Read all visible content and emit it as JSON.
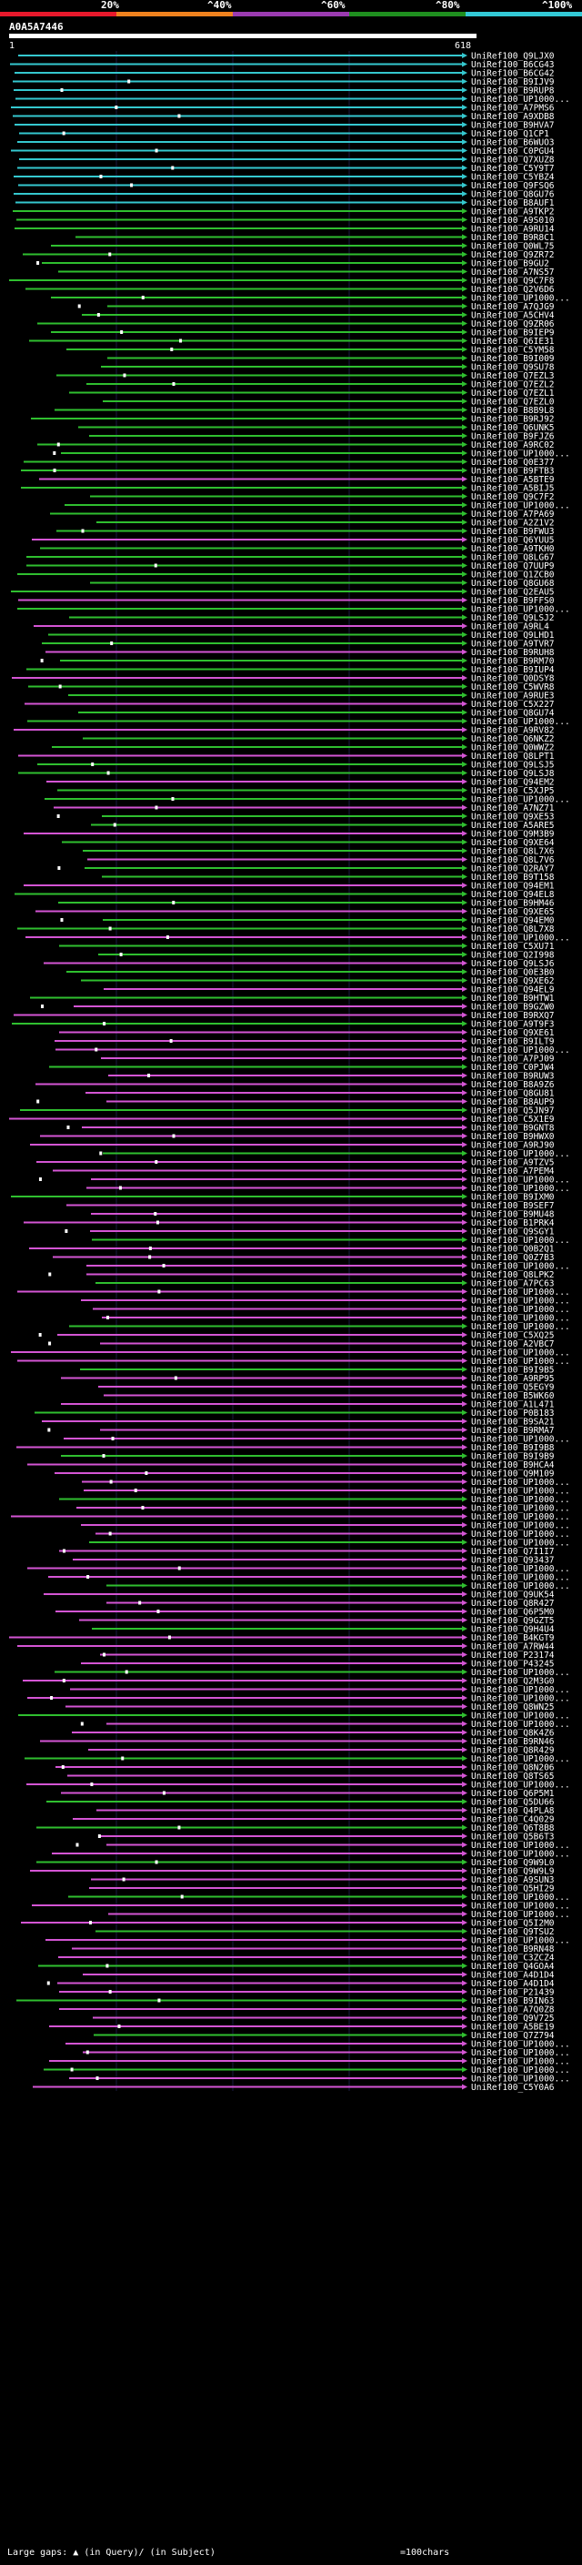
{
  "header": {
    "percent_labels": [
      "20%",
      "^40%",
      "^60%",
      "^80%",
      "^100%"
    ],
    "band_colors": [
      "#e8192c",
      "#f0821e",
      "#9b3bb0",
      "#1f8f1f",
      "#33c9d6"
    ],
    "query_id": "A0A5A7446",
    "start_pos": "1",
    "end_pos": "618"
  },
  "colors": {
    "cyan": "#35c8cf",
    "green": "#2fbf2f",
    "magenta": "#d455d4",
    "dark_green": "#2a6a2a"
  },
  "hits": [
    "UniRef100_Q9LJX0",
    "UniRef100_B6CG43",
    "UniRef100_B6CG42",
    "UniRef100_B9IJV9",
    "UniRef100_B9RUP8",
    "UniRef100_UP1000...",
    "UniRef100_A7PMS6",
    "UniRef100_A9XDB8",
    "UniRef100_B9HVA7",
    "UniRef100_Q1CP1",
    "UniRef100_B6WUO3",
    "UniRef100_C0PGU4",
    "UniRef100_Q7XUZ8",
    "UniRef100_C5Y9T7",
    "UniRef100_C5YBZ4",
    "UniRef100_Q9FSQ6",
    "UniRef100_Q8GU76",
    "UniRef100_B8AUF1",
    "UniRef100_A9TKP2",
    "UniRef100_A9S010",
    "UniRef100_A9RU14",
    "UniRef100_B9R8C1",
    "UniRef100_Q0WL75",
    "UniRef100_Q9ZR72",
    "UniRef100_B9GU2",
    "UniRef100_A7NS57",
    "UniRef100_Q9C7F8",
    "UniRef100_Q2V6D6",
    "UniRef100_UP1000...",
    "UniRef100_A7QJG9",
    "UniRef100_A5CHV4",
    "UniRef100_Q9ZR06",
    "UniRef100_B9IEP9",
    "UniRef100_Q6IE31",
    "UniRef100_C5YM58",
    "UniRef100_B9I009",
    "UniRef100_Q9SU78",
    "UniRef100_Q7EZL3",
    "UniRef100_Q7EZL2",
    "UniRef100_Q7EZL1",
    "UniRef100_Q7EZL0",
    "UniRef100_B8B9L8",
    "UniRef100_B9RJ92",
    "UniRef100_Q6UNK5",
    "UniRef100_B9FJZ6",
    "UniRef100_A9RC02",
    "UniRef100_UP1000...",
    "UniRef100_Q0E377",
    "UniRef100_B9FTB3",
    "UniRef100_A5BTE9",
    "UniRef100_A5BIJ5",
    "UniRef100_Q9C7F2",
    "UniRef100_UP1000...",
    "UniRef100_A7PA69",
    "UniRef100_A2Z1V2",
    "UniRef100_B9FWU3",
    "UniRef100_Q6YUU5",
    "UniRef100_A9TKH0",
    "UniRef100_Q8LG67",
    "UniRef100_Q7UUP9",
    "UniRef100_Q1ZCB0",
    "UniRef100_Q8GU68",
    "UniRef100_Q2EAU5",
    "UniRef100_B9FFS0",
    "UniRef100_UP1000...",
    "UniRef100_Q9LSJ2",
    "UniRef100_A9RL4",
    "UniRef100_Q9LHD1",
    "UniRef100_A9TVR7",
    "UniRef100_B9RUH8",
    "UniRef100_B9RM70",
    "UniRef100_B9IUP4",
    "UniRef100_Q0DSY8",
    "UniRef100_C5WVR8",
    "UniRef100_A9RUE3",
    "UniRef100_C5X227",
    "UniRef100_Q8GU74",
    "UniRef100_UP1000...",
    "UniRef100_A9RV82",
    "UniRef100_Q6NKZ2",
    "UniRef100_Q0WWZ2",
    "UniRef100_Q8LPT1",
    "UniRef100_Q9LSJ5",
    "UniRef100_Q9LSJ8",
    "UniRef100_Q94EM2",
    "UniRef100_C5XJP5",
    "UniRef100_UP1000...",
    "UniRef100_A7NZ71",
    "UniRef100_Q9XE53",
    "UniRef100_A5ARE5",
    "UniRef100_Q9M3B9",
    "UniRef100_Q9XE64",
    "UniRef100_Q8L7X6",
    "UniRef100_Q8L7V6",
    "UniRef100_Q2RAY7",
    "UniRef100_B9T158",
    "UniRef100_Q94EM1",
    "UniRef100_Q94EL8",
    "UniRef100_B9HM46",
    "UniRef100_Q9XE65",
    "UniRef100_Q94EM0",
    "UniRef100_Q8L7X8",
    "UniRef100_UP1000...",
    "UniRef100_C5XU71",
    "UniRef100_Q2I998",
    "UniRef100_Q9LSJ6",
    "UniRef100_Q0E3B0",
    "UniRef100_Q9XE62",
    "UniRef100_Q94EL9",
    "UniRef100_B9HTW1",
    "UniRef100_B9GZW0",
    "UniRef100_B9RXQ7",
    "UniRef100_A9T9F3",
    "UniRef100_Q9XE61",
    "UniRef100_B9ILT9",
    "UniRef100_UP1000...",
    "UniRef100_A7PJ09",
    "UniRef100_C0PJW4",
    "UniRef100_B9RUW3",
    "UniRef100_B8A9Z6",
    "UniRef100_Q8GU81",
    "UniRef100_B8AUP9",
    "UniRef100_Q5JN97",
    "UniRef100_C5X1E9",
    "UniRef100_B9GNT8",
    "UniRef100_B9HWX0",
    "UniRef100_A9RJ90",
    "UniRef100_UP1000...",
    "UniRef100_A9TZV5",
    "UniRef100_A7PEM4",
    "UniRef100_UP1000...",
    "UniRef100_UP1000...",
    "UniRef100_B9IXM0",
    "UniRef100_B9SEF7",
    "UniRef100_B9MU48",
    "UniRef100_B1PRK4",
    "UniRef100_Q9SGY1",
    "UniRef100_UP1000...",
    "UniRef100_Q0B2Q1",
    "UniRef100_Q0Z7B3",
    "UniRef100_UP1000...",
    "UniRef100_Q8LPK2",
    "UniRef100_A7PC63",
    "UniRef100_UP1000...",
    "UniRef100_UP1000...",
    "UniRef100_UP1000...",
    "UniRef100_UP1000...",
    "UniRef100_UP1000...",
    "UniRef100_C5XQ25",
    "UniRef100_A2VBC7",
    "UniRef100_UP1000...",
    "UniRef100_UP1000...",
    "UniRef100_B9I9B5",
    "UniRef100_A9RP95",
    "UniRef100_Q5EGY9",
    "UniRef100_B5WK60",
    "UniRef100_A1L471",
    "UniRef100_P0B183",
    "UniRef100_B9SA21",
    "UniRef100_B9RMA7",
    "UniRef100_UP1000...",
    "UniRef100_B9I9B8",
    "UniRef100_B9I9B9",
    "UniRef100_B9HCA4",
    "UniRef100_Q9M109",
    "UniRef100_UP1000...",
    "UniRef100_UP1000...",
    "UniRef100_UP1000...",
    "UniRef100_UP1000...",
    "UniRef100_UP1000...",
    "UniRef100_UP1000...",
    "UniRef100_UP1000...",
    "UniRef100_UP1000...",
    "UniRef100_Q7I1I7",
    "UniRef100_Q93437",
    "UniRef100_UP1000...",
    "UniRef100_UP1000...",
    "UniRef100_UP1000...",
    "UniRef100_Q9UK54",
    "UniRef100_Q8R427",
    "UniRef100_Q6P5M0",
    "UniRef100_Q9GZT5",
    "UniRef100_Q9H4U4",
    "UniRef100_B4KGT9",
    "UniRef100_A7RW44",
    "UniRef100_P23174",
    "UniRef100_P43245",
    "UniRef100_UP1000...",
    "UniRef100_Q2M3G0",
    "UniRef100_UP1000...",
    "UniRef100_UP1000...",
    "UniRef100_Q8WN25",
    "UniRef100_UP1000...",
    "UniRef100_UP1000...",
    "UniRef100_Q8K4Z6",
    "UniRef100_B9RN46",
    "UniRef100_Q8R429",
    "UniRef100_UP1000...",
    "UniRef100_Q8N206",
    "UniRef100_Q8TS65",
    "UniRef100_UP1000...",
    "UniRef100_Q6P5M1",
    "UniRef100_Q5DU66",
    "UniRef100_Q4PLA8",
    "UniRef100_C4Q029",
    "UniRef100_Q6T8B8",
    "UniRef100_Q5B6T3",
    "UniRef100_UP1000...",
    "UniRef100_UP1000...",
    "UniRef100_Q9W9L0",
    "UniRef100_Q9W9L9",
    "UniRef100_A9SUN3",
    "UniRef100_Q5HI29",
    "UniRef100_UP1000...",
    "UniRef100_UP1000...",
    "UniRef100_UP1000...",
    "UniRef100_Q5I2M0",
    "UniRef100_Q9TSU2",
    "UniRef100_UP1000...",
    "UniRef100_B9RN48",
    "UniRef100_C3ZCZ4",
    "UniRef100_Q4GOA4",
    "UniRef100_A4D1D4",
    "UniRef100_A4D1D4",
    "UniRef100_P21439",
    "UniRef100_B9IN63",
    "UniRef100_A7Q0Z8",
    "UniRef100_Q9V725",
    "UniRef100_A5BE19",
    "UniRef100_Q7Z794",
    "UniRef100_UP1000...",
    "UniRef100_UP1000...",
    "UniRef100_UP1000...",
    "UniRef100_UP1000...",
    "UniRef100_UP1000...",
    "UniRef100_C5Y0A6"
  ],
  "footer": {
    "gaps_label": "Large gaps:",
    "gaps_query": "(in Query)/",
    "gaps_subject": "(in Subject)",
    "scale_label": "=100chars"
  }
}
